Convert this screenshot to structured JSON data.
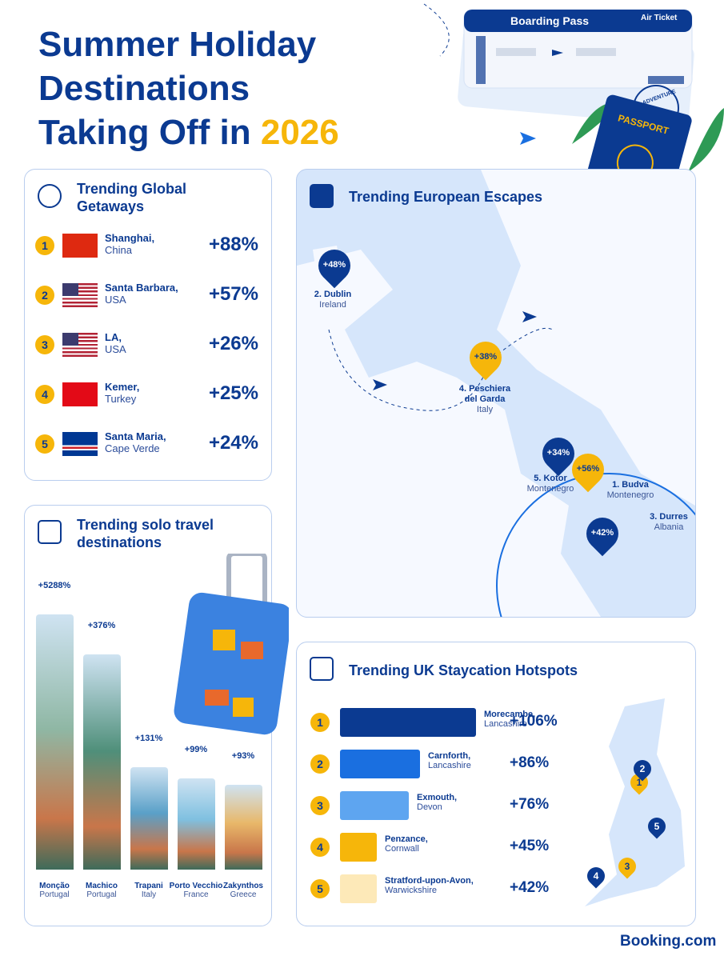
{
  "header": {
    "title_line1": "Summer Holiday",
    "title_line2": "Destinations",
    "title_line3": "Taking Off in",
    "title_year": "2026"
  },
  "tickets": {
    "boarding_pass": "Boarding Pass",
    "air_ticket": "Air Ticket",
    "passport": "PASSPORT",
    "stamp": "ADVENTURE"
  },
  "global": {
    "title": "Trending Global Getaways",
    "items": [
      {
        "rank": "1",
        "city": "Shanghai,",
        "country": "China",
        "change": "+88%"
      },
      {
        "rank": "2",
        "city": "Santa Barbara,",
        "country": "USA",
        "change": "+57%"
      },
      {
        "rank": "3",
        "city": "LA,",
        "country": "USA",
        "change": "+26%"
      },
      {
        "rank": "4",
        "city": "Kemer,",
        "country": "Turkey",
        "change": "+25%"
      },
      {
        "rank": "5",
        "city": "Santa Maria,",
        "country": "Cape Verde",
        "change": "+24%"
      }
    ]
  },
  "europe": {
    "title": "Trending European Escapes",
    "pins": [
      {
        "change": "+48%",
        "name": "2. Dublin",
        "country": "Ireland"
      },
      {
        "change": "+38%",
        "name": "4. Peschiera del Garda",
        "country": "Italy"
      },
      {
        "change": "+34%",
        "name": "5. Kotor",
        "country": "Montenegro"
      },
      {
        "change": "+56%",
        "name": "1. Budva",
        "country": "Montenegro"
      },
      {
        "change": "+42%",
        "name": "3. Durres",
        "country": "Albania"
      }
    ]
  },
  "solo": {
    "title": "Trending solo travel destinations",
    "items": [
      {
        "change": "+5288%",
        "city": "Monção",
        "country": "Portugal"
      },
      {
        "change": "+376%",
        "city": "Machico",
        "country": "Portugal"
      },
      {
        "change": "+131%",
        "city": "Trapani",
        "country": "Italy"
      },
      {
        "change": "+99%",
        "city": "Porto Vecchio",
        "country": "France"
      },
      {
        "change": "+93%",
        "city": "Zakynthos",
        "country": "Greece"
      }
    ]
  },
  "uk": {
    "title": "Trending UK Staycation Hotspots",
    "items": [
      {
        "rank": "1",
        "town": "Morecambe,",
        "county": "Lancashire",
        "change": "+106%"
      },
      {
        "rank": "2",
        "town": "Carnforth,",
        "county": "Lancashire",
        "change": "+86%"
      },
      {
        "rank": "3",
        "town": "Exmouth,",
        "county": "Devon",
        "change": "+76%"
      },
      {
        "rank": "4",
        "town": "Penzance,",
        "county": "Cornwall",
        "change": "+45%"
      },
      {
        "rank": "5",
        "town": "Stratford-upon-Avon,",
        "county": "Warwickshire",
        "change": "+42%"
      }
    ]
  },
  "footer": {
    "brand": "Booking.com"
  }
}
